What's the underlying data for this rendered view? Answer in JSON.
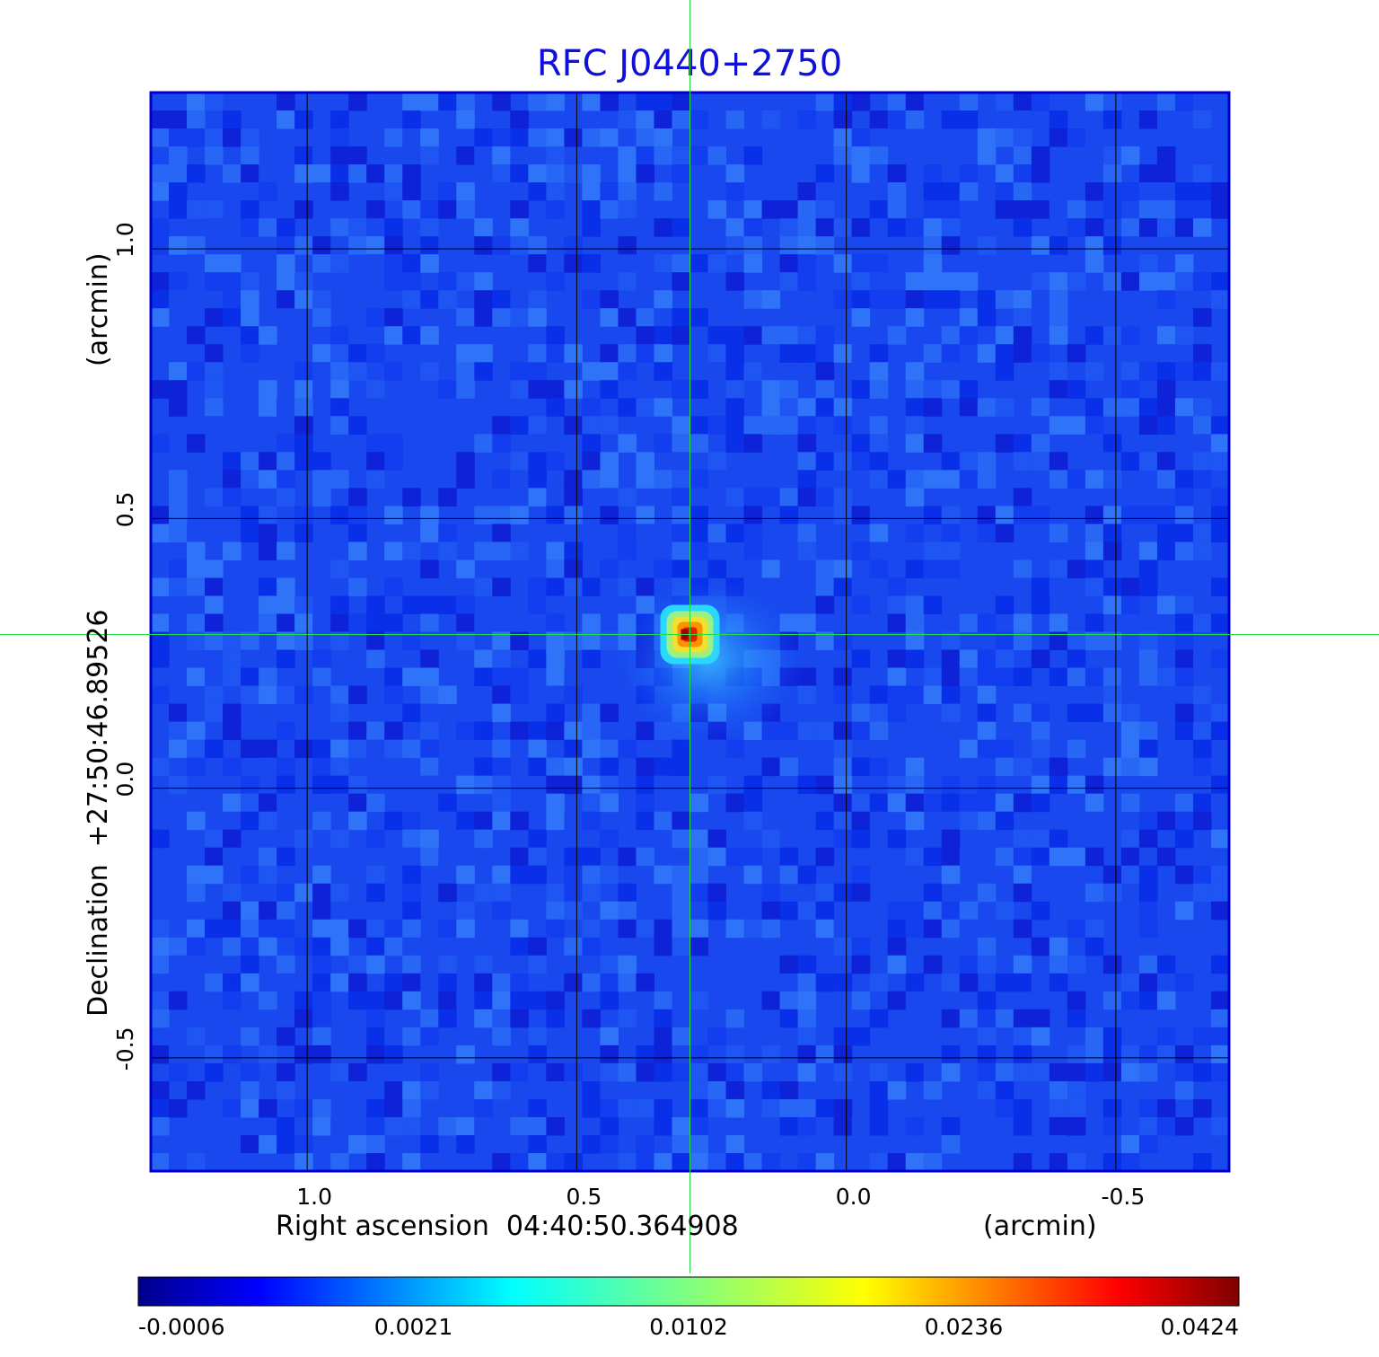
{
  "chart_data": {
    "type": "heatmap",
    "title": "RFC J0440+2750",
    "xlabel": "Right ascension  04:40:50.364908",
    "xunit": "(arcmin)",
    "ylabel": "Declination  +27:50:46.89526",
    "yunit": "(arcmin)",
    "x_ticks": [
      "1.0",
      "0.5",
      "0.0",
      "-0.5"
    ],
    "y_ticks": [
      "1.0",
      "0.5",
      "0.0",
      "-0.5"
    ],
    "x_tick_values": [
      1.0,
      0.5,
      0.0,
      -0.5
    ],
    "y_tick_values": [
      1.0,
      0.5,
      0.0,
      -0.5
    ],
    "xlim": [
      1.29,
      -0.71
    ],
    "ylim": [
      -0.71,
      1.29
    ],
    "grid": true,
    "crosshair": {
      "x": 0.29,
      "y": 0.285
    },
    "source_peak": {
      "x": 0.29,
      "y": 0.285,
      "value": 0.0424
    },
    "colorbar": {
      "colormap": "jet",
      "ticks": [
        "-0.0006",
        "0.0021",
        "0.0102",
        "0.0236",
        "0.0424"
      ],
      "min": -0.0006,
      "max": 0.0424
    }
  },
  "colors": {
    "title": "#1010d8",
    "crosshair": "#22dd44",
    "grid": "#000000"
  }
}
